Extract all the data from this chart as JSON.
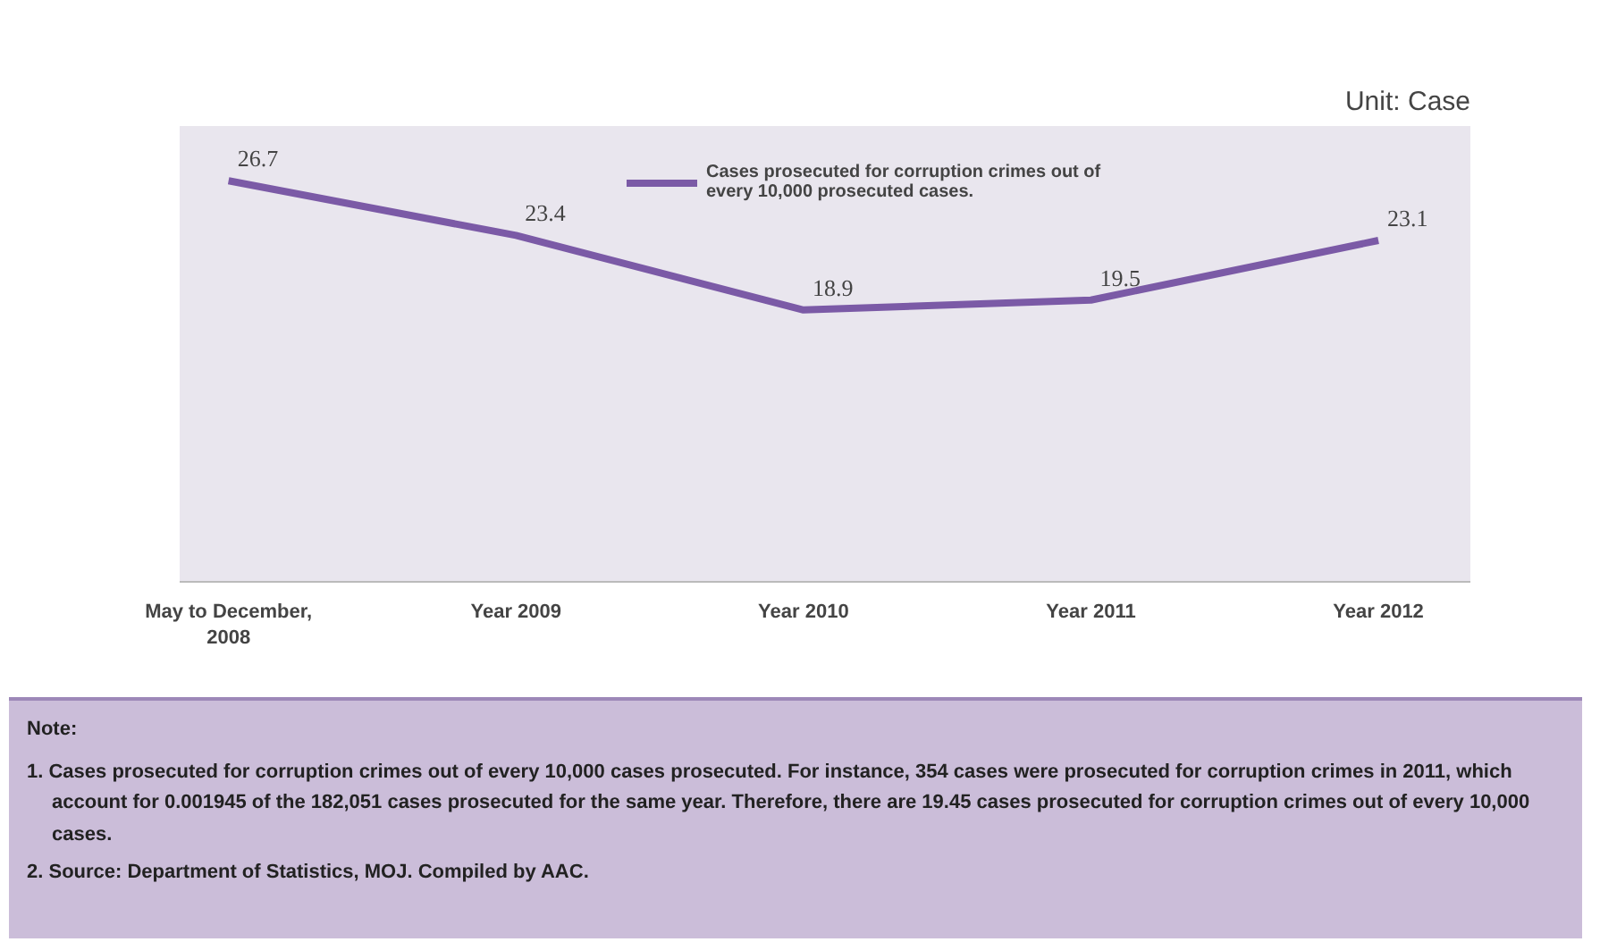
{
  "chart_data": {
    "type": "line",
    "subtitle": "Unit: Case",
    "categories": [
      "May to December, 2008",
      "Year 2009",
      "Year 2010",
      "Year 2011",
      "Year 2012"
    ],
    "series": [
      {
        "name": "Cases prosecuted for corruption crimes out of every 10,000 prosecuted cases.",
        "color": "#7b5aa6",
        "values": [
          26.7,
          23.4,
          18.9,
          19.5,
          23.1
        ]
      }
    ],
    "ylim": [
      2.5,
      30
    ],
    "tick_labels": "x",
    "data_labels": true,
    "legend": "top",
    "grid": false,
    "marker": "none",
    "line_style": "solid",
    "annotations": [
      "Note:",
      "1. Cases prosecuted for corruption crimes out of every 10,000 cases prosecuted. For instance, 354 cases were prosecuted for corruption crimes in 2011, which account for 0.001945 of the 182,051 cases prosecuted for the same year. Therefore, there are 19.45 cases prosecuted for corruption crimes out of every 10,000 cases.",
      "2. Source: Department of Statistics, MOJ. Compiled by AAC."
    ]
  }
}
